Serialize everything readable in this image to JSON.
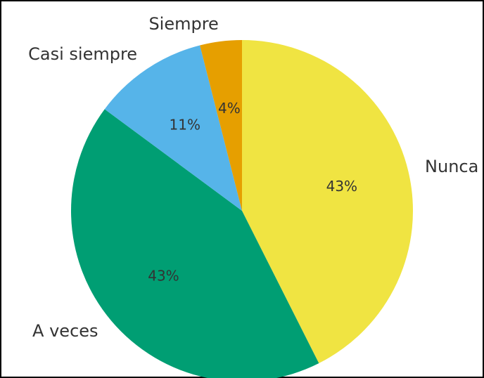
{
  "chart_data": {
    "type": "pie",
    "categories": [
      "Nunca",
      "A veces",
      "Casi siempre",
      "Siempre"
    ],
    "values": [
      43,
      43,
      11,
      4
    ],
    "value_labels": [
      "43%",
      "43%",
      "11%",
      "4%"
    ],
    "colors": [
      "#f0e442",
      "#009e73",
      "#56b4e9",
      "#e69f00"
    ],
    "start_angle": 90,
    "counterclock": false
  }
}
